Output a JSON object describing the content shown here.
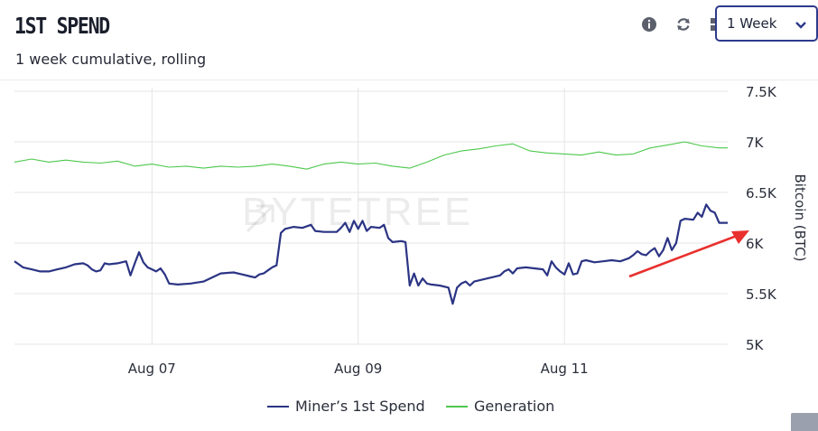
{
  "header": {
    "title": "1ST SPEND",
    "subtitle": "1 week cumulative, rolling"
  },
  "toolbar": {
    "icons": [
      "info-icon",
      "refresh-icon",
      "grid-icon"
    ],
    "range_value": "1 Week"
  },
  "watermark": "BYTETREE",
  "colors": {
    "miner": "#2b3484",
    "generation": "#4cc84c",
    "arrow": "#e8302e",
    "grid": "#e4e4e4",
    "accent": "#2d3a8c"
  },
  "chart_data": {
    "type": "line",
    "ylabel": "Bitcoin (BTC)",
    "ylim": [
      5000,
      7500
    ],
    "yticks": [
      {
        "value": 5000,
        "label": "5K"
      },
      {
        "value": 5500,
        "label": "5.5K"
      },
      {
        "value": 6000,
        "label": "6K"
      },
      {
        "value": 6500,
        "label": "6.5K"
      },
      {
        "value": 7000,
        "label": "7K"
      },
      {
        "value": 7500,
        "label": "7.5K"
      }
    ],
    "xlim": [
      "2021-08-05T16:00",
      "2021-08-12T14:00"
    ],
    "xticks": [
      {
        "date": "2021-08-07T00:00",
        "label": "Aug 07"
      },
      {
        "date": "2021-08-09T00:00",
        "label": "Aug 09"
      },
      {
        "date": "2021-08-11T00:00",
        "label": "Aug 11"
      }
    ],
    "grid": true,
    "legend": "bottom-center",
    "series": [
      {
        "name": "Miner’s 1st Spend",
        "points": [
          [
            "2021-08-05T16:00",
            5820
          ],
          [
            "2021-08-05T17:00",
            5790
          ],
          [
            "2021-08-05T18:00",
            5760
          ],
          [
            "2021-08-05T20:00",
            5740
          ],
          [
            "2021-08-05T22:00",
            5720
          ],
          [
            "2021-08-06T00:00",
            5720
          ],
          [
            "2021-08-06T02:00",
            5740
          ],
          [
            "2021-08-06T04:00",
            5760
          ],
          [
            "2021-08-06T06:00",
            5790
          ],
          [
            "2021-08-06T08:00",
            5800
          ],
          [
            "2021-08-06T09:00",
            5780
          ],
          [
            "2021-08-06T10:00",
            5740
          ],
          [
            "2021-08-06T11:00",
            5720
          ],
          [
            "2021-08-06T12:00",
            5730
          ],
          [
            "2021-08-06T13:00",
            5800
          ],
          [
            "2021-08-06T14:00",
            5790
          ],
          [
            "2021-08-06T16:00",
            5800
          ],
          [
            "2021-08-06T18:00",
            5820
          ],
          [
            "2021-08-06T19:00",
            5680
          ],
          [
            "2021-08-06T20:00",
            5800
          ],
          [
            "2021-08-06T21:00",
            5910
          ],
          [
            "2021-08-06T22:00",
            5810
          ],
          [
            "2021-08-06T23:00",
            5760
          ],
          [
            "2021-08-07T00:00",
            5740
          ],
          [
            "2021-08-07T01:00",
            5720
          ],
          [
            "2021-08-07T02:00",
            5750
          ],
          [
            "2021-08-07T03:00",
            5690
          ],
          [
            "2021-08-07T04:00",
            5600
          ],
          [
            "2021-08-07T06:00",
            5590
          ],
          [
            "2021-08-07T09:00",
            5600
          ],
          [
            "2021-08-07T12:00",
            5620
          ],
          [
            "2021-08-07T14:00",
            5660
          ],
          [
            "2021-08-07T16:00",
            5700
          ],
          [
            "2021-08-07T19:00",
            5710
          ],
          [
            "2021-08-07T21:00",
            5690
          ],
          [
            "2021-08-07T23:00",
            5670
          ],
          [
            "2021-08-08T00:00",
            5660
          ],
          [
            "2021-08-08T01:00",
            5690
          ],
          [
            "2021-08-08T02:00",
            5700
          ],
          [
            "2021-08-08T03:00",
            5730
          ],
          [
            "2021-08-08T04:00",
            5760
          ],
          [
            "2021-08-08T05:00",
            5780
          ],
          [
            "2021-08-08T06:00",
            6100
          ],
          [
            "2021-08-08T07:00",
            6140
          ],
          [
            "2021-08-08T09:00",
            6160
          ],
          [
            "2021-08-08T11:00",
            6150
          ],
          [
            "2021-08-08T13:00",
            6180
          ],
          [
            "2021-08-08T14:00",
            6120
          ],
          [
            "2021-08-08T16:00",
            6110
          ],
          [
            "2021-08-08T19:00",
            6110
          ],
          [
            "2021-08-08T20:00",
            6150
          ],
          [
            "2021-08-08T21:00",
            6200
          ],
          [
            "2021-08-08T22:00",
            6110
          ],
          [
            "2021-08-08T23:00",
            6220
          ],
          [
            "2021-08-09T00:00",
            6140
          ],
          [
            "2021-08-09T01:00",
            6220
          ],
          [
            "2021-08-09T02:00",
            6120
          ],
          [
            "2021-08-09T03:00",
            6160
          ],
          [
            "2021-08-09T05:00",
            6150
          ],
          [
            "2021-08-09T06:00",
            6180
          ],
          [
            "2021-08-09T07:00",
            6050
          ],
          [
            "2021-08-09T08:00",
            6010
          ],
          [
            "2021-08-09T10:00",
            6020
          ],
          [
            "2021-08-09T11:00",
            6010
          ],
          [
            "2021-08-09T12:00",
            5580
          ],
          [
            "2021-08-09T13:00",
            5700
          ],
          [
            "2021-08-09T14:00",
            5580
          ],
          [
            "2021-08-09T15:00",
            5650
          ],
          [
            "2021-08-09T16:00",
            5600
          ],
          [
            "2021-08-09T17:00",
            5590
          ],
          [
            "2021-08-09T19:00",
            5580
          ],
          [
            "2021-08-09T21:00",
            5560
          ],
          [
            "2021-08-09T22:00",
            5400
          ],
          [
            "2021-08-09T23:00",
            5560
          ],
          [
            "2021-08-10T00:00",
            5600
          ],
          [
            "2021-08-10T01:00",
            5620
          ],
          [
            "2021-08-10T02:00",
            5580
          ],
          [
            "2021-08-10T03:00",
            5620
          ],
          [
            "2021-08-10T05:00",
            5640
          ],
          [
            "2021-08-10T07:00",
            5660
          ],
          [
            "2021-08-10T09:00",
            5680
          ],
          [
            "2021-08-10T10:00",
            5720
          ],
          [
            "2021-08-10T11:00",
            5740
          ],
          [
            "2021-08-10T12:00",
            5700
          ],
          [
            "2021-08-10T13:00",
            5750
          ],
          [
            "2021-08-10T15:00",
            5760
          ],
          [
            "2021-08-10T17:00",
            5750
          ],
          [
            "2021-08-10T19:00",
            5740
          ],
          [
            "2021-08-10T20:00",
            5680
          ],
          [
            "2021-08-10T21:00",
            5820
          ],
          [
            "2021-08-10T22:00",
            5760
          ],
          [
            "2021-08-10T23:00",
            5720
          ],
          [
            "2021-08-11T00:00",
            5690
          ],
          [
            "2021-08-11T01:00",
            5800
          ],
          [
            "2021-08-11T02:00",
            5690
          ],
          [
            "2021-08-11T03:00",
            5700
          ],
          [
            "2021-08-11T04:00",
            5820
          ],
          [
            "2021-08-11T05:00",
            5830
          ],
          [
            "2021-08-11T07:00",
            5810
          ],
          [
            "2021-08-11T09:00",
            5820
          ],
          [
            "2021-08-11T11:00",
            5830
          ],
          [
            "2021-08-11T13:00",
            5820
          ],
          [
            "2021-08-11T15:00",
            5850
          ],
          [
            "2021-08-11T16:00",
            5880
          ],
          [
            "2021-08-11T17:00",
            5920
          ],
          [
            "2021-08-11T18:00",
            5890
          ],
          [
            "2021-08-11T19:00",
            5880
          ],
          [
            "2021-08-11T20:00",
            5920
          ],
          [
            "2021-08-11T21:00",
            5950
          ],
          [
            "2021-08-11T22:00",
            5870
          ],
          [
            "2021-08-11T23:00",
            5930
          ],
          [
            "2021-08-12T00:00",
            6050
          ],
          [
            "2021-08-12T01:00",
            5930
          ],
          [
            "2021-08-12T02:00",
            6000
          ],
          [
            "2021-08-12T03:00",
            6220
          ],
          [
            "2021-08-12T04:00",
            6240
          ],
          [
            "2021-08-12T06:00",
            6230
          ],
          [
            "2021-08-12T07:00",
            6300
          ],
          [
            "2021-08-12T08:00",
            6260
          ],
          [
            "2021-08-12T09:00",
            6380
          ],
          [
            "2021-08-12T10:00",
            6320
          ],
          [
            "2021-08-12T11:00",
            6300
          ],
          [
            "2021-08-12T12:00",
            6200
          ],
          [
            "2021-08-12T14:00",
            6200
          ]
        ]
      },
      {
        "name": "Generation",
        "points": [
          [
            "2021-08-05T16:00",
            6800
          ],
          [
            "2021-08-05T20:00",
            6830
          ],
          [
            "2021-08-06T00:00",
            6800
          ],
          [
            "2021-08-06T04:00",
            6820
          ],
          [
            "2021-08-06T08:00",
            6800
          ],
          [
            "2021-08-06T12:00",
            6790
          ],
          [
            "2021-08-06T16:00",
            6810
          ],
          [
            "2021-08-06T20:00",
            6760
          ],
          [
            "2021-08-07T00:00",
            6780
          ],
          [
            "2021-08-07T04:00",
            6750
          ],
          [
            "2021-08-07T08:00",
            6760
          ],
          [
            "2021-08-07T12:00",
            6740
          ],
          [
            "2021-08-07T16:00",
            6760
          ],
          [
            "2021-08-07T20:00",
            6750
          ],
          [
            "2021-08-08T00:00",
            6760
          ],
          [
            "2021-08-08T04:00",
            6780
          ],
          [
            "2021-08-08T08:00",
            6760
          ],
          [
            "2021-08-08T12:00",
            6730
          ],
          [
            "2021-08-08T16:00",
            6780
          ],
          [
            "2021-08-08T20:00",
            6800
          ],
          [
            "2021-08-09T00:00",
            6780
          ],
          [
            "2021-08-09T04:00",
            6790
          ],
          [
            "2021-08-09T08:00",
            6760
          ],
          [
            "2021-08-09T12:00",
            6740
          ],
          [
            "2021-08-09T16:00",
            6800
          ],
          [
            "2021-08-09T20:00",
            6870
          ],
          [
            "2021-08-10T00:00",
            6910
          ],
          [
            "2021-08-10T04:00",
            6930
          ],
          [
            "2021-08-10T08:00",
            6960
          ],
          [
            "2021-08-10T12:00",
            6980
          ],
          [
            "2021-08-10T16:00",
            6910
          ],
          [
            "2021-08-10T20:00",
            6890
          ],
          [
            "2021-08-11T00:00",
            6880
          ],
          [
            "2021-08-11T04:00",
            6870
          ],
          [
            "2021-08-11T08:00",
            6900
          ],
          [
            "2021-08-11T12:00",
            6870
          ],
          [
            "2021-08-11T16:00",
            6880
          ],
          [
            "2021-08-11T20:00",
            6940
          ],
          [
            "2021-08-12T00:00",
            6970
          ],
          [
            "2021-08-12T04:00",
            7000
          ],
          [
            "2021-08-12T08:00",
            6960
          ],
          [
            "2021-08-12T12:00",
            6940
          ],
          [
            "2021-08-12T14:00",
            6940
          ]
        ]
      }
    ]
  }
}
